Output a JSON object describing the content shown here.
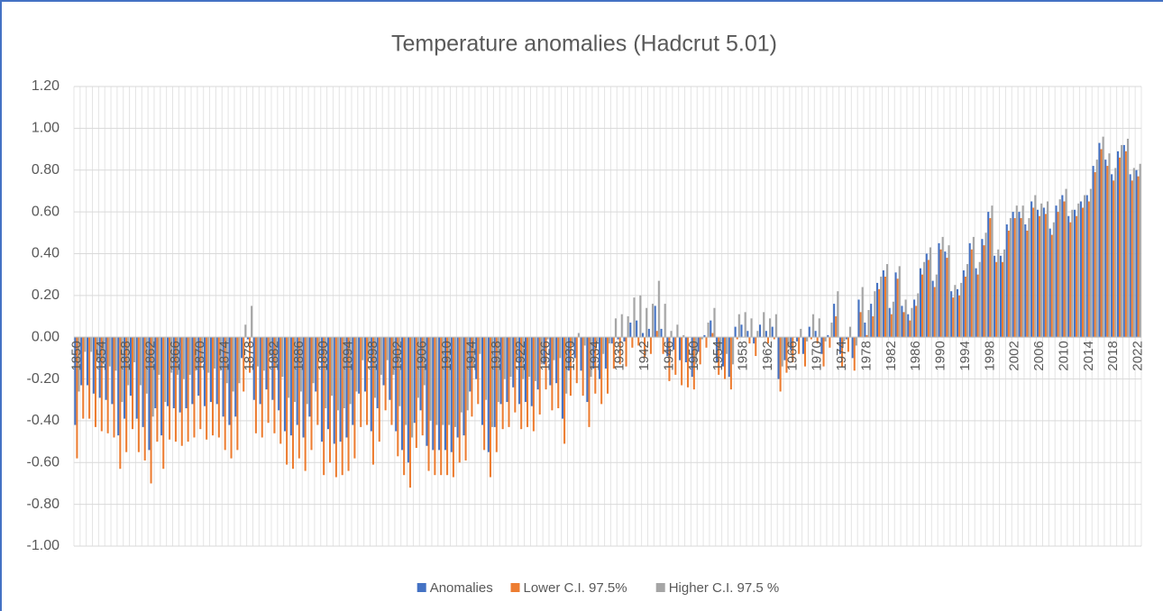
{
  "chart_data": {
    "type": "bar",
    "title": "Temperature anomalies (Hadcrut 5.01)",
    "categories": [
      "1850",
      null,
      null,
      null,
      "1854",
      null,
      null,
      null,
      "1858",
      null,
      null,
      null,
      "1862",
      null,
      null,
      null,
      "1866",
      null,
      null,
      null,
      "1870",
      null,
      null,
      null,
      "1874",
      null,
      null,
      null,
      "1878",
      null,
      null,
      null,
      "1882",
      null,
      null,
      null,
      "1886",
      null,
      null,
      null,
      "1890",
      null,
      null,
      null,
      "1894",
      null,
      null,
      null,
      "1898",
      null,
      null,
      null,
      "1902",
      null,
      null,
      null,
      "1906",
      null,
      null,
      null,
      "1910",
      null,
      null,
      null,
      "1914",
      null,
      null,
      null,
      "1918",
      null,
      null,
      null,
      "1922",
      null,
      null,
      null,
      "1926",
      null,
      null,
      null,
      "1930",
      null,
      null,
      null,
      "1934",
      null,
      null,
      null,
      "1938",
      null,
      null,
      null,
      "1942",
      null,
      null,
      null,
      "1946",
      null,
      null,
      null,
      "1950",
      null,
      null,
      null,
      "1954",
      null,
      null,
      null,
      "1958",
      null,
      null,
      null,
      "1962",
      null,
      null,
      null,
      "1966",
      null,
      null,
      null,
      "1970",
      null,
      null,
      null,
      "1974",
      null,
      null,
      null,
      "1978",
      null,
      null,
      null,
      "1982",
      null,
      null,
      null,
      "1986",
      null,
      null,
      null,
      "1990",
      null,
      null,
      null,
      "1994",
      null,
      null,
      null,
      "1998",
      null,
      null,
      null,
      "2002",
      null,
      null,
      null,
      "2006",
      null,
      null,
      null,
      "2010",
      null,
      null,
      null,
      "2014",
      null,
      null,
      null,
      "2018",
      null,
      null,
      null,
      "2022"
    ],
    "series": [
      {
        "name": "Anomalies",
        "color": "#4472c4",
        "values": [
          -0.42,
          -0.23,
          -0.23,
          -0.27,
          -0.29,
          -0.3,
          -0.32,
          -0.47,
          -0.39,
          -0.28,
          -0.39,
          -0.43,
          -0.54,
          -0.34,
          -0.47,
          -0.33,
          -0.34,
          -0.36,
          -0.34,
          -0.32,
          -0.28,
          -0.33,
          -0.31,
          -0.32,
          -0.38,
          -0.42,
          -0.38,
          -0.1,
          -0.01,
          -0.3,
          -0.32,
          -0.25,
          -0.3,
          -0.35,
          -0.45,
          -0.47,
          -0.42,
          -0.48,
          -0.38,
          -0.26,
          -0.5,
          -0.44,
          -0.51,
          -0.5,
          -0.48,
          -0.42,
          -0.27,
          -0.26,
          -0.45,
          -0.34,
          -0.23,
          -0.3,
          -0.45,
          -0.54,
          -0.6,
          -0.41,
          -0.35,
          -0.52,
          -0.54,
          -0.54,
          -0.54,
          -0.55,
          -0.48,
          -0.47,
          -0.26,
          -0.2,
          -0.42,
          -0.55,
          -0.43,
          -0.32,
          -0.31,
          -0.24,
          -0.32,
          -0.31,
          -0.33,
          -0.25,
          -0.13,
          -0.23,
          -0.22,
          -0.39,
          -0.16,
          -0.1,
          -0.16,
          -0.31,
          -0.15,
          -0.2,
          -0.15,
          -0.03,
          -0.01,
          -0.02,
          0.07,
          0.08,
          0.02,
          0.04,
          0.15,
          0.04,
          -0.09,
          -0.06,
          -0.11,
          -0.12,
          -0.19,
          -0.07,
          0.01,
          0.08,
          -0.12,
          -0.14,
          -0.19,
          0.05,
          0.06,
          0.03,
          -0.03,
          0.06,
          0.03,
          0.05,
          -0.2,
          -0.11,
          -0.06,
          -0.02,
          -0.08,
          0.05,
          0.03,
          -0.08,
          0.01,
          0.16,
          -0.08,
          -0.01,
          -0.1,
          0.18,
          0.07,
          0.16,
          0.26,
          0.32,
          0.14,
          0.31,
          0.15,
          0.11,
          0.18,
          0.33,
          0.4,
          0.27,
          0.45,
          0.41,
          0.22,
          0.23,
          0.32,
          0.45,
          0.33,
          0.47,
          0.6,
          0.39,
          0.39,
          0.54,
          0.6,
          0.6,
          0.54,
          0.65,
          0.61,
          0.62,
          0.52,
          0.63,
          0.68,
          0.58,
          0.61,
          0.65,
          0.68,
          0.82,
          0.93,
          0.85,
          0.78,
          0.89,
          0.92,
          0.78,
          0.8
        ]
      },
      {
        "name": "Lower C.I. 97.5%",
        "color": "#ed7d31",
        "values": [
          -0.58,
          -0.39,
          -0.39,
          -0.43,
          -0.45,
          -0.46,
          -0.48,
          -0.63,
          -0.55,
          -0.44,
          -0.55,
          -0.59,
          -0.7,
          -0.5,
          -0.63,
          -0.49,
          -0.5,
          -0.52,
          -0.5,
          -0.48,
          -0.44,
          -0.49,
          -0.47,
          -0.48,
          -0.54,
          -0.58,
          -0.54,
          -0.26,
          -0.17,
          -0.46,
          -0.48,
          -0.41,
          -0.46,
          -0.51,
          -0.61,
          -0.63,
          -0.58,
          -0.64,
          -0.54,
          -0.42,
          -0.66,
          -0.6,
          -0.67,
          -0.66,
          -0.64,
          -0.58,
          -0.43,
          -0.42,
          -0.61,
          -0.5,
          -0.35,
          -0.42,
          -0.57,
          -0.66,
          -0.72,
          -0.53,
          -0.47,
          -0.64,
          -0.66,
          -0.66,
          -0.66,
          -0.67,
          -0.6,
          -0.59,
          -0.38,
          -0.32,
          -0.54,
          -0.67,
          -0.55,
          -0.44,
          -0.43,
          -0.36,
          -0.44,
          -0.43,
          -0.45,
          -0.37,
          -0.25,
          -0.35,
          -0.34,
          -0.51,
          -0.28,
          -0.22,
          -0.28,
          -0.43,
          -0.27,
          -0.32,
          -0.27,
          -0.15,
          -0.13,
          -0.14,
          -0.05,
          -0.04,
          -0.1,
          -0.08,
          0.03,
          -0.08,
          -0.21,
          -0.18,
          -0.23,
          -0.24,
          -0.25,
          -0.13,
          -0.05,
          0.02,
          -0.18,
          -0.2,
          -0.25,
          -0.01,
          0.0,
          -0.03,
          -0.09,
          0.0,
          -0.03,
          -0.01,
          -0.26,
          -0.17,
          -0.12,
          -0.08,
          -0.14,
          -0.01,
          -0.03,
          -0.14,
          -0.05,
          0.1,
          -0.14,
          -0.07,
          -0.16,
          0.12,
          0.01,
          0.1,
          0.23,
          0.29,
          0.11,
          0.28,
          0.12,
          0.08,
          0.15,
          0.3,
          0.37,
          0.24,
          0.42,
          0.38,
          0.19,
          0.2,
          0.29,
          0.42,
          0.3,
          0.44,
          0.57,
          0.36,
          0.36,
          0.51,
          0.57,
          0.57,
          0.51,
          0.62,
          0.58,
          0.59,
          0.49,
          0.6,
          0.65,
          0.55,
          0.58,
          0.62,
          0.65,
          0.79,
          0.9,
          0.82,
          0.75,
          0.86,
          0.89,
          0.75,
          0.77
        ]
      },
      {
        "name": "Higher C.I. 97.5 %",
        "color": "#a5a5a5",
        "values": [
          -0.26,
          -0.07,
          -0.07,
          -0.11,
          -0.13,
          -0.14,
          -0.16,
          -0.31,
          -0.23,
          -0.12,
          -0.23,
          -0.27,
          -0.38,
          -0.18,
          -0.31,
          -0.17,
          -0.18,
          -0.2,
          -0.18,
          -0.16,
          -0.12,
          -0.17,
          -0.15,
          -0.16,
          -0.22,
          -0.26,
          -0.22,
          0.06,
          0.15,
          -0.14,
          -0.16,
          -0.09,
          -0.14,
          -0.19,
          -0.29,
          -0.31,
          -0.26,
          -0.32,
          -0.22,
          -0.1,
          -0.34,
          -0.28,
          -0.35,
          -0.34,
          -0.32,
          -0.26,
          -0.11,
          -0.1,
          -0.29,
          -0.18,
          -0.11,
          -0.18,
          -0.33,
          -0.42,
          -0.48,
          -0.29,
          -0.23,
          -0.4,
          -0.42,
          -0.42,
          -0.42,
          -0.43,
          -0.36,
          -0.35,
          -0.14,
          -0.08,
          -0.3,
          -0.43,
          -0.31,
          -0.2,
          -0.19,
          -0.12,
          -0.2,
          -0.19,
          -0.21,
          -0.13,
          -0.01,
          -0.11,
          -0.1,
          -0.27,
          -0.04,
          0.02,
          -0.04,
          -0.19,
          -0.03,
          -0.08,
          -0.03,
          0.09,
          0.11,
          0.1,
          0.19,
          0.2,
          0.14,
          0.16,
          0.27,
          0.16,
          0.03,
          0.06,
          0.01,
          0.0,
          -0.13,
          -0.01,
          0.07,
          0.14,
          -0.06,
          -0.08,
          -0.13,
          0.11,
          0.12,
          0.09,
          0.03,
          0.12,
          0.09,
          0.11,
          -0.14,
          -0.05,
          0.0,
          0.04,
          -0.02,
          0.11,
          0.09,
          -0.02,
          0.07,
          0.22,
          -0.02,
          0.05,
          -0.04,
          0.24,
          0.13,
          0.22,
          0.29,
          0.35,
          0.17,
          0.34,
          0.18,
          0.14,
          0.21,
          0.36,
          0.43,
          0.3,
          0.48,
          0.44,
          0.25,
          0.26,
          0.35,
          0.48,
          0.36,
          0.5,
          0.63,
          0.42,
          0.42,
          0.57,
          0.63,
          0.63,
          0.57,
          0.68,
          0.64,
          0.65,
          0.55,
          0.66,
          0.71,
          0.61,
          0.64,
          0.68,
          0.71,
          0.85,
          0.96,
          0.88,
          0.81,
          0.92,
          0.95,
          0.81,
          0.83
        ]
      }
    ],
    "ylim": [
      -1,
      1.2
    ],
    "yticks": [
      {
        "value": -1,
        "label": "-1.00"
      },
      {
        "value": -0.8,
        "label": "-0.80"
      },
      {
        "value": -0.6,
        "label": "-0.60"
      },
      {
        "value": -0.4,
        "label": "-0.40"
      },
      {
        "value": -0.2,
        "label": "-0.20"
      },
      {
        "value": 0,
        "label": "0.00"
      },
      {
        "value": 0.2,
        "label": "0.20"
      },
      {
        "value": 0.4,
        "label": "0.40"
      },
      {
        "value": 0.6,
        "label": "0.60"
      },
      {
        "value": 0.8,
        "label": "0.80"
      },
      {
        "value": 1,
        "label": "1.00"
      },
      {
        "value": 1.2,
        "label": "1.20"
      }
    ],
    "grid": true,
    "legend": "bottom"
  }
}
